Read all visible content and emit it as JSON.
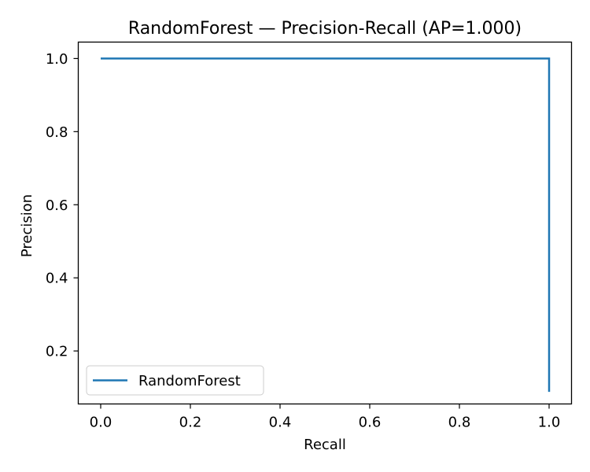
{
  "chart_data": {
    "type": "line",
    "title": "RandomForest — Precision-Recall (AP=1.000)",
    "xlabel": "Recall",
    "ylabel": "Precision",
    "xlim": [
      -0.05,
      1.05
    ],
    "ylim": [
      0.055,
      1.045
    ],
    "xticks": [
      0.0,
      0.2,
      0.4,
      0.6,
      0.8,
      1.0
    ],
    "xtick_labels": [
      "0.0",
      "0.2",
      "0.4",
      "0.6",
      "0.8",
      "1.0"
    ],
    "yticks": [
      0.2,
      0.4,
      0.6,
      0.8,
      1.0
    ],
    "ytick_labels": [
      "0.2",
      "0.4",
      "0.6",
      "0.8",
      "1.0"
    ],
    "grid": false,
    "legend_position": "lower-left",
    "series": [
      {
        "name": "RandomForest",
        "color": "#1f77b4",
        "x": [
          0.0,
          1.0,
          1.0
        ],
        "y": [
          1.0,
          1.0,
          0.088
        ]
      }
    ]
  }
}
